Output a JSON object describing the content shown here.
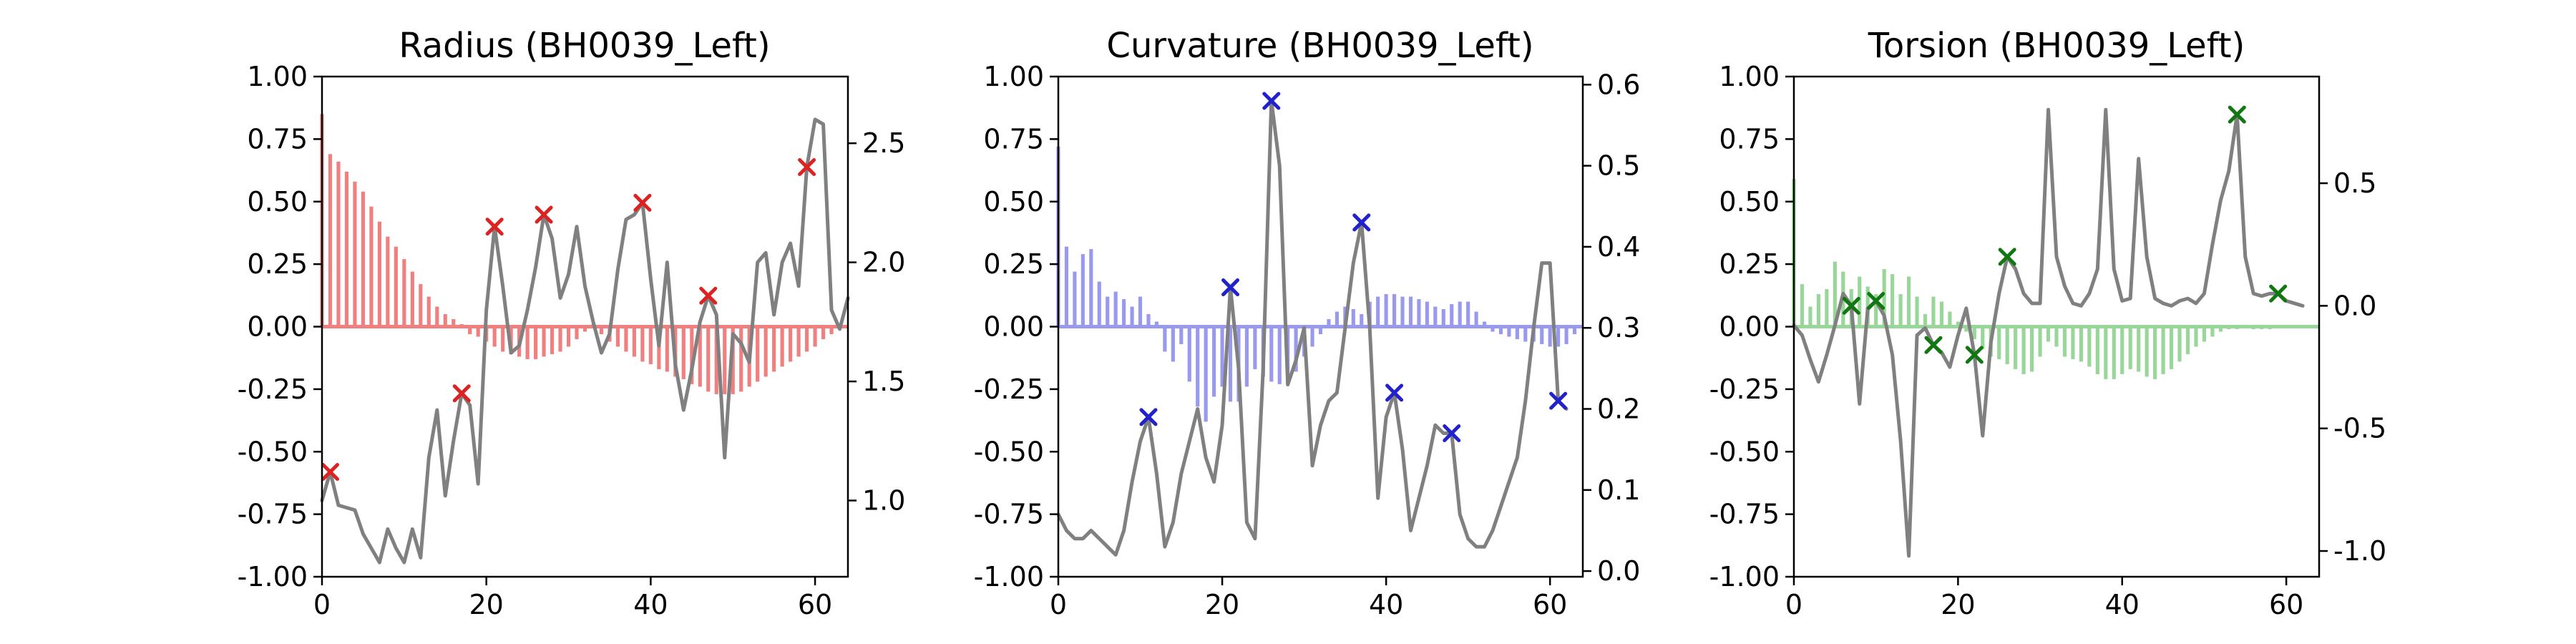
{
  "figure": {
    "background": "#ffffff"
  },
  "chart_data": [
    {
      "type": "bar",
      "title": "Radius (BH0039_Left)",
      "bar_color": "#f08080",
      "line_color": "#808080",
      "marker_color": "#dd2222",
      "marker_symbol": "x",
      "xlim": [
        0,
        64
      ],
      "x_ticks": [
        0,
        20,
        40,
        60
      ],
      "ylim_left": [
        -1.0,
        1.0
      ],
      "left_ticks": [
        "1.00",
        "0.75",
        "0.50",
        "0.25",
        "0.00",
        "-0.25",
        "-0.50",
        "-0.75",
        "-1.00"
      ],
      "ylim_right": [
        0.68,
        2.78
      ],
      "right_ticks": [
        "2.5",
        "2.0",
        "1.5",
        "1.0"
      ],
      "bars": [
        0.85,
        0.69,
        0.66,
        0.62,
        0.58,
        0.54,
        0.48,
        0.42,
        0.36,
        0.32,
        0.27,
        0.22,
        0.17,
        0.12,
        0.08,
        0.05,
        0.03,
        0.01,
        -0.03,
        -0.04,
        -0.06,
        -0.08,
        -0.1,
        -0.11,
        -0.12,
        -0.13,
        -0.13,
        -0.12,
        -0.11,
        -0.1,
        -0.08,
        -0.05,
        -0.02,
        0.01,
        -0.03,
        -0.06,
        -0.08,
        -0.1,
        -0.12,
        -0.14,
        -0.15,
        -0.17,
        -0.18,
        -0.2,
        -0.21,
        -0.23,
        -0.24,
        -0.26,
        -0.27,
        -0.27,
        -0.27,
        -0.26,
        -0.24,
        -0.22,
        -0.2,
        -0.18,
        -0.16,
        -0.14,
        -0.12,
        -0.1,
        -0.08,
        -0.05,
        -0.03,
        -0.01
      ],
      "line": [
        1.0,
        1.12,
        0.98,
        0.97,
        0.96,
        0.86,
        0.8,
        0.74,
        0.88,
        0.8,
        0.74,
        0.88,
        0.76,
        1.18,
        1.38,
        1.02,
        1.25,
        1.45,
        1.4,
        1.07,
        1.8,
        2.15,
        1.9,
        1.62,
        1.65,
        1.8,
        1.98,
        2.2,
        2.1,
        1.85,
        1.95,
        2.15,
        1.9,
        1.75,
        1.62,
        1.7,
        1.97,
        2.18,
        2.2,
        2.25,
        1.93,
        1.65,
        2.0,
        1.57,
        1.38,
        1.55,
        1.75,
        1.86,
        1.78,
        1.18,
        1.7,
        1.66,
        1.58,
        2.0,
        2.04,
        1.78,
        2.0,
        2.08,
        1.9,
        2.4,
        2.6,
        2.58,
        1.8,
        1.72,
        1.85
      ],
      "markers": [
        1,
        17,
        21,
        27,
        39,
        47,
        59
      ]
    },
    {
      "type": "bar",
      "title": "Curvature (BH0039_Left)",
      "bar_color": "#9999ee",
      "line_color": "#808080",
      "marker_color": "#2222cc",
      "marker_symbol": "x",
      "xlim": [
        0,
        64
      ],
      "x_ticks": [
        0,
        20,
        40,
        60
      ],
      "ylim_left": [
        -1.0,
        1.0
      ],
      "left_ticks": [
        "1.00",
        "0.75",
        "0.50",
        "0.25",
        "0.00",
        "-0.25",
        "-0.50",
        "-0.75",
        "-1.00"
      ],
      "ylim_right": [
        -0.007,
        0.61
      ],
      "right_ticks": [
        "0.6",
        "0.5",
        "0.4",
        "0.3",
        "0.2",
        "0.1",
        "0.0"
      ],
      "bars": [
        0.72,
        0.32,
        0.22,
        0.29,
        0.31,
        0.18,
        0.12,
        0.14,
        0.11,
        0.08,
        0.12,
        0.05,
        0.02,
        -0.1,
        -0.14,
        -0.07,
        -0.22,
        -0.32,
        -0.38,
        -0.28,
        -0.24,
        -0.3,
        -0.3,
        -0.24,
        -0.17,
        -0.2,
        -0.22,
        -0.23,
        -0.22,
        -0.18,
        -0.12,
        -0.08,
        -0.03,
        0.03,
        0.06,
        0.08,
        0.07,
        0.05,
        0.1,
        0.12,
        0.13,
        0.13,
        0.12,
        0.12,
        0.11,
        0.1,
        0.08,
        0.07,
        0.09,
        0.1,
        0.1,
        0.06,
        0.02,
        -0.02,
        -0.03,
        -0.04,
        -0.05,
        -0.06,
        -0.06,
        -0.07,
        -0.08,
        -0.08,
        -0.07,
        -0.03
      ],
      "line": [
        0.07,
        0.05,
        0.04,
        0.04,
        0.05,
        0.04,
        0.03,
        0.02,
        0.05,
        0.11,
        0.16,
        0.19,
        0.12,
        0.03,
        0.06,
        0.12,
        0.16,
        0.2,
        0.14,
        0.11,
        0.18,
        0.35,
        0.25,
        0.06,
        0.04,
        0.25,
        0.58,
        0.5,
        0.23,
        0.26,
        0.3,
        0.13,
        0.18,
        0.21,
        0.22,
        0.3,
        0.38,
        0.43,
        0.3,
        0.09,
        0.19,
        0.22,
        0.15,
        0.05,
        0.09,
        0.13,
        0.18,
        0.17,
        0.17,
        0.07,
        0.04,
        0.03,
        0.03,
        0.05,
        0.08,
        0.11,
        0.14,
        0.21,
        0.3,
        0.38,
        0.38,
        0.21,
        0.2
      ],
      "markers": [
        11,
        21,
        26,
        37,
        41,
        48,
        61
      ]
    },
    {
      "type": "bar",
      "title": "Torsion (BH0039_Left)",
      "bar_color": "#99d699",
      "line_color": "#808080",
      "marker_color": "#117711",
      "marker_symbol": "x",
      "xlim": [
        0,
        64
      ],
      "x_ticks": [
        0,
        20,
        40,
        60
      ],
      "ylim_left": [
        -1.0,
        1.0
      ],
      "left_ticks": [
        "1.00",
        "0.75",
        "0.50",
        "0.25",
        "0.00",
        "-0.25",
        "-0.50",
        "-0.75",
        "-1.00"
      ],
      "ylim_right": [
        -1.105,
        0.935
      ],
      "right_ticks": [
        "0.5",
        "0.0",
        "-0.5",
        "-1.0"
      ],
      "bars": [
        0.59,
        0.17,
        0.08,
        0.13,
        0.15,
        0.26,
        0.22,
        0.15,
        0.2,
        0.16,
        0.13,
        0.23,
        0.21,
        0.13,
        0.2,
        0.12,
        0.05,
        0.12,
        0.1,
        0.06,
        0.02,
        -0.02,
        -0.05,
        -0.09,
        -0.12,
        -0.13,
        -0.15,
        -0.17,
        -0.19,
        -0.18,
        -0.12,
        -0.06,
        -0.08,
        -0.12,
        -0.13,
        -0.14,
        -0.16,
        -0.19,
        -0.21,
        -0.21,
        -0.19,
        -0.17,
        -0.18,
        -0.2,
        -0.21,
        -0.19,
        -0.17,
        -0.14,
        -0.11,
        -0.08,
        -0.06,
        -0.04,
        -0.02,
        -0.01,
        -0.01,
        0.0,
        -0.01,
        -0.01,
        -0.01,
        0.0,
        0.0,
        0.0,
        0.0
      ],
      "line": [
        -0.08,
        -0.12,
        -0.22,
        -0.31,
        -0.2,
        -0.08,
        0.05,
        0.0,
        -0.4,
        -0.01,
        0.02,
        -0.04,
        -0.2,
        -0.55,
        -1.02,
        -0.12,
        -0.09,
        -0.16,
        -0.19,
        -0.25,
        -0.12,
        -0.01,
        -0.2,
        -0.53,
        -0.15,
        0.05,
        0.2,
        0.15,
        0.05,
        0.01,
        0.01,
        0.8,
        0.2,
        0.08,
        0.01,
        0.0,
        0.05,
        0.15,
        0.8,
        0.15,
        0.02,
        0.03,
        0.6,
        0.2,
        0.03,
        0.01,
        0.0,
        0.02,
        0.03,
        0.01,
        0.05,
        0.25,
        0.43,
        0.55,
        0.78,
        0.2,
        0.05,
        0.04,
        0.05,
        0.05,
        0.02,
        0.01,
        0.0
      ],
      "markers": [
        7,
        10,
        17,
        22,
        26,
        54,
        59
      ]
    }
  ]
}
